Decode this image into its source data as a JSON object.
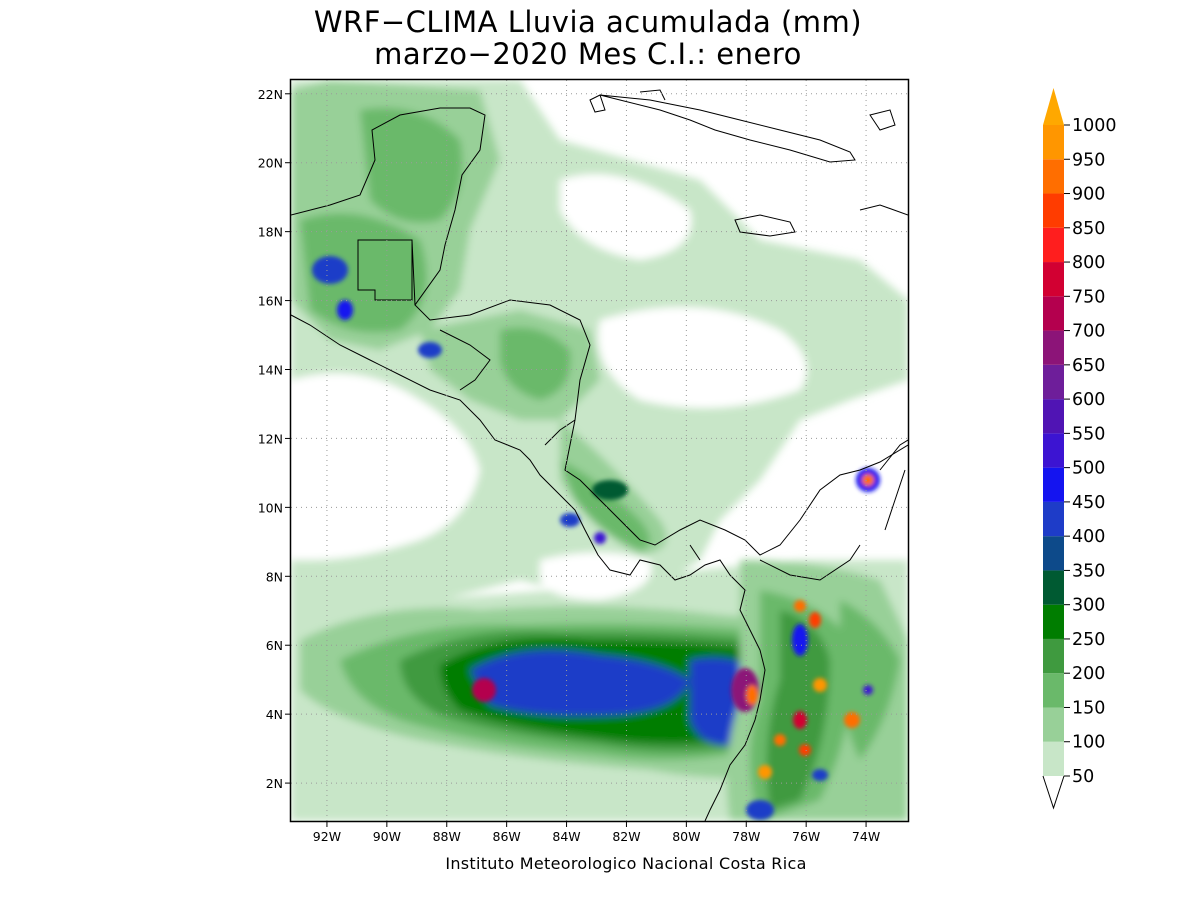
{
  "title": {
    "line1": "WRF−CLIMA Lluvia acumulada (mm)",
    "line2": "marzo−2020 Mes C.I.: enero"
  },
  "credit": "Instituto Meteorologico Nacional Costa Rica",
  "map": {
    "lon_range": [
      -93.2,
      -72.6
    ],
    "lat_range": [
      0.9,
      22.4
    ],
    "lon_ticks": [
      {
        "value": -92,
        "label": "92W"
      },
      {
        "value": -90,
        "label": "90W"
      },
      {
        "value": -88,
        "label": "88W"
      },
      {
        "value": -86,
        "label": "86W"
      },
      {
        "value": -84,
        "label": "84W"
      },
      {
        "value": -82,
        "label": "82W"
      },
      {
        "value": -80,
        "label": "80W"
      },
      {
        "value": -78,
        "label": "78W"
      },
      {
        "value": -76,
        "label": "76W"
      },
      {
        "value": -74,
        "label": "74W"
      }
    ],
    "lat_ticks": [
      {
        "value": 2,
        "label": "2N"
      },
      {
        "value": 4,
        "label": "4N"
      },
      {
        "value": 6,
        "label": "6N"
      },
      {
        "value": 8,
        "label": "8N"
      },
      {
        "value": 10,
        "label": "10N"
      },
      {
        "value": 12,
        "label": "12N"
      },
      {
        "value": 14,
        "label": "14N"
      },
      {
        "value": 16,
        "label": "16N"
      },
      {
        "value": 18,
        "label": "18N"
      },
      {
        "value": 20,
        "label": "20N"
      },
      {
        "value": 22,
        "label": "22N"
      }
    ],
    "grid": true
  },
  "colorbar": {
    "levels": [
      "50",
      "100",
      "150",
      "200",
      "250",
      "300",
      "350",
      "400",
      "450",
      "500",
      "550",
      "600",
      "650",
      "700",
      "750",
      "800",
      "850",
      "900",
      "950",
      "1000"
    ],
    "colors": [
      "#c8e6c8",
      "#98d098",
      "#6ab96a",
      "#3f9a3f",
      "#007d00",
      "#005a32",
      "#0d4a8a",
      "#1e3cc8",
      "#1414f0",
      "#3c14d2",
      "#5014b4",
      "#6e1e9a",
      "#8c1478",
      "#b4004e",
      "#d20032",
      "#ff1e1e",
      "#ff3c00",
      "#ff6e00",
      "#ff9600"
    ],
    "arrow_color": "#ffa800"
  }
}
